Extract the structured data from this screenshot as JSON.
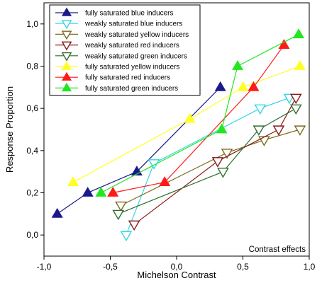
{
  "chart_data": {
    "type": "line",
    "xlabel": "Michelson Contrast",
    "ylabel": "Response Proportion",
    "xlim": [
      -1.0,
      1.0
    ],
    "ylim": [
      -0.1,
      1.1
    ],
    "xticks": [
      -1.0,
      -0.5,
      0.0,
      0.5,
      1.0
    ],
    "yticks": [
      0.0,
      0.2,
      0.4,
      0.6,
      0.8,
      1.0
    ],
    "xtick_labels": [
      "-1,0",
      "-0,5",
      "0,0",
      "0,5",
      "1,0"
    ],
    "ytick_labels": [
      "0,0",
      "0,2",
      "0,4",
      "0,6",
      "0,8",
      "1,0"
    ],
    "grid": false,
    "legend_position": "top-left",
    "annotation": "Contrast effects",
    "series": [
      {
        "name": "fully saturated blue inducers",
        "color": "#1a1a8c",
        "marker": "triangle-up-filled",
        "x": [
          -0.9,
          -0.67,
          -0.3,
          0.33
        ],
        "y": [
          0.1,
          0.2,
          0.3,
          0.7
        ]
      },
      {
        "name": "weakly saturated blue inducers",
        "color": "#33d6e6",
        "marker": "triangle-down-open",
        "x": [
          -0.38,
          -0.17,
          0.63,
          0.85
        ],
        "y": [
          0.0,
          0.34,
          0.6,
          0.65
        ]
      },
      {
        "name": "weakly saturated yellow inducers",
        "color": "#7a6a1a",
        "marker": "triangle-down-open",
        "x": [
          -0.42,
          0.38,
          0.66,
          0.93
        ],
        "y": [
          0.14,
          0.39,
          0.45,
          0.5
        ]
      },
      {
        "name": "weakly saturated red inducers",
        "color": "#8a1a1a",
        "marker": "triangle-down-open",
        "x": [
          -0.32,
          0.31,
          0.77,
          0.9
        ],
        "y": [
          0.05,
          0.35,
          0.5,
          0.65
        ]
      },
      {
        "name": "weakly saturated green inducers",
        "color": "#2e6e2e",
        "marker": "triangle-down-open",
        "x": [
          -0.44,
          0.35,
          0.62,
          0.9
        ],
        "y": [
          0.1,
          0.3,
          0.5,
          0.6
        ]
      },
      {
        "name": "fully saturated yellow inducers",
        "color": "#ffff22",
        "marker": "triangle-up-filled",
        "x": [
          -0.78,
          0.1,
          0.5,
          0.93
        ],
        "y": [
          0.25,
          0.55,
          0.7,
          0.8
        ]
      },
      {
        "name": "fully saturated red inducers",
        "color": "#ff1a1a",
        "marker": "triangle-up-filled",
        "x": [
          -0.48,
          -0.09,
          0.58,
          0.81
        ],
        "y": [
          0.2,
          0.25,
          0.7,
          0.9
        ]
      },
      {
        "name": "fully saturated green inducers",
        "color": "#22e622",
        "marker": "triangle-up-filled",
        "x": [
          -0.57,
          0.34,
          0.46,
          0.92
        ],
        "y": [
          0.2,
          0.5,
          0.8,
          0.95
        ]
      }
    ]
  }
}
